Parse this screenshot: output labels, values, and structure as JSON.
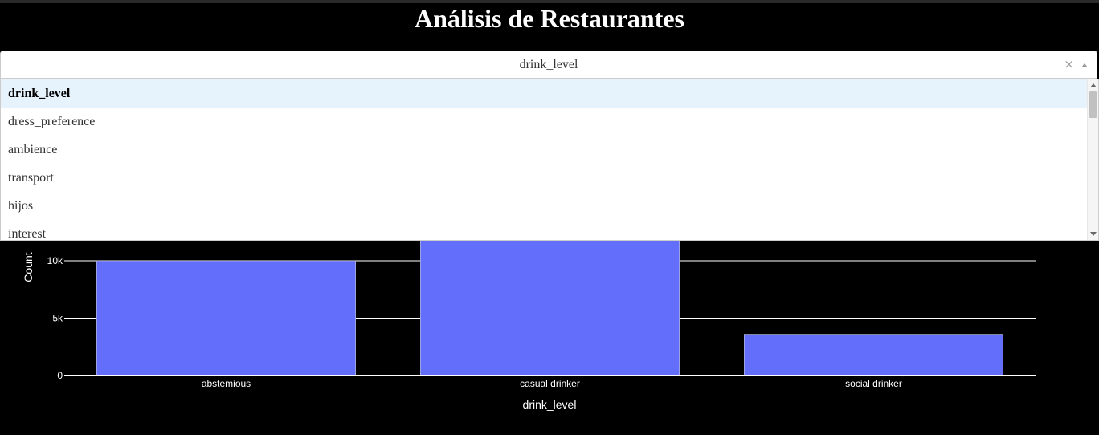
{
  "page": {
    "title": "Análisis de Restaurantes"
  },
  "dropdown": {
    "value": "drink_level",
    "clear_symbol": "×",
    "options": [
      "drink_level",
      "dress_preference",
      "ambience",
      "transport",
      "hijos",
      "interest"
    ],
    "selected_index": 0
  },
  "chart_data": {
    "type": "bar",
    "categories": [
      "abstemious",
      "casual drinker",
      "social drinker"
    ],
    "values": [
      10000,
      12600,
      3600
    ],
    "xlabel": "drink_level",
    "ylabel": "Count",
    "yticks": [
      {
        "value": 0,
        "label": "0"
      },
      {
        "value": 5000,
        "label": "5k"
      },
      {
        "value": 10000,
        "label": "10k"
      }
    ],
    "ylim": [
      0,
      13000
    ],
    "bar_color": "#636efa",
    "grid": true
  }
}
